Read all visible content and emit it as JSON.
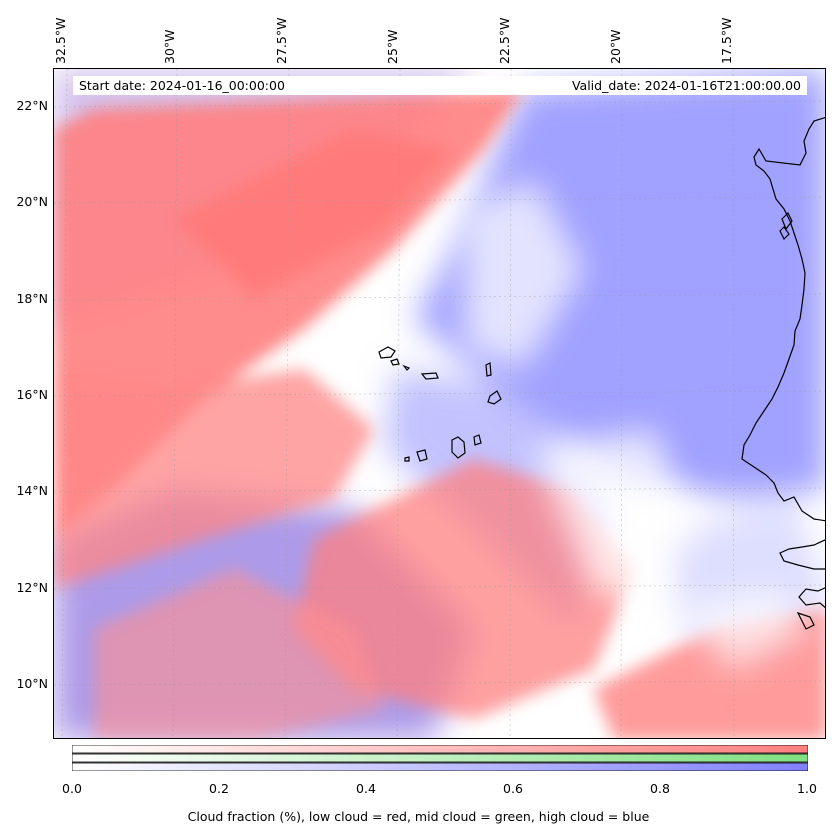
{
  "map": {
    "lon_ticks": [
      "32.5°W",
      "30°W",
      "27.5°W",
      "25°W",
      "22.5°W",
      "20°W",
      "17.5°W"
    ],
    "lat_ticks": [
      "22°N",
      "20°N",
      "18°N",
      "16°N",
      "14°N",
      "12°N",
      "10°N"
    ],
    "start_date": "Start date: 2024-01-16_00:00:00",
    "valid_date": "Valid_date: 2024-01-16T21:00:00.00",
    "colors": {
      "low": "#ff7f7f",
      "mid": "#80e080",
      "high": "#8080ff",
      "coast": "#000000"
    }
  },
  "colorbar": {
    "ticks": [
      "0.0",
      "0.2",
      "0.4",
      "0.6",
      "0.8",
      "1.0"
    ],
    "label": "Cloud fraction (%), low cloud = red, mid cloud = green, high cloud = blue"
  }
}
